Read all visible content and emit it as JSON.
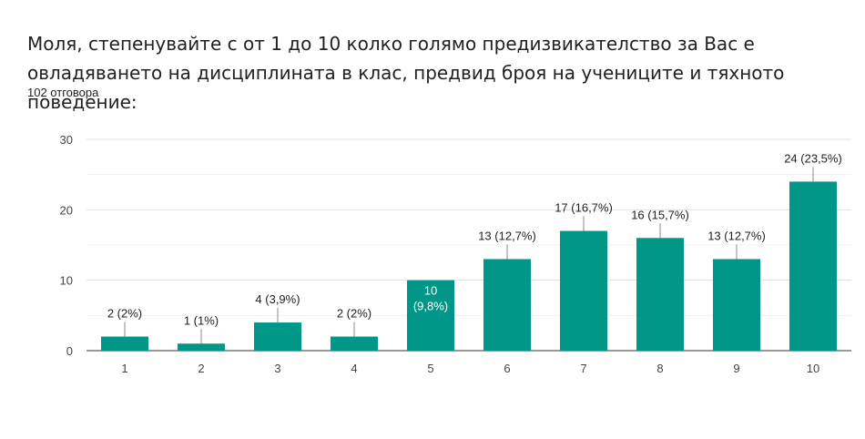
{
  "question": {
    "title": "Моля, степенувайте с от 1 до 10 колко голямо предизвикателство за Вас е овладяването на дисциплината в клас, предвид броя на учениците и тяхното поведение:",
    "responses": "102 отговора"
  },
  "chart_data": {
    "type": "bar",
    "categories": [
      "1",
      "2",
      "3",
      "4",
      "5",
      "6",
      "7",
      "8",
      "9",
      "10"
    ],
    "values": [
      2,
      1,
      4,
      2,
      10,
      13,
      17,
      16,
      13,
      24
    ],
    "labels": [
      "2 (2%)",
      "1 (1%)",
      "4 (3,9%)",
      "2 (2%)",
      "10 (9,8%)",
      "13 (12,7%)",
      "17 (16,7%)",
      "16 (15,7%)",
      "13 (12,7%)",
      "24 (23,5%)"
    ],
    "ylim": [
      0,
      30
    ],
    "yticks": [
      "0",
      "10",
      "20",
      "30"
    ],
    "grid": true,
    "bar_color": "#009688",
    "title": "",
    "xlabel": "",
    "ylabel": ""
  }
}
